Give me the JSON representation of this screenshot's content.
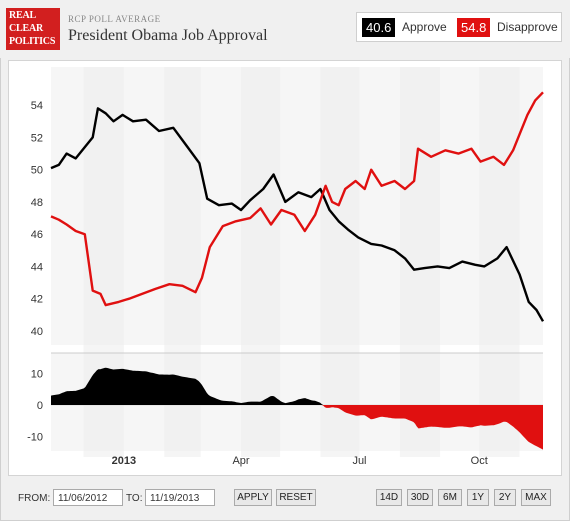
{
  "header": {
    "logo_lines": [
      "REAL",
      "CLEAR",
      "POLITICS"
    ],
    "subtitle": "RCP POLL AVERAGE",
    "title": "President Obama Job Approval"
  },
  "legend": {
    "approve_value": "40.6",
    "approve_label": "Approve",
    "disapprove_value": "54.8",
    "disapprove_label": "Disapprove"
  },
  "colors": {
    "approve": "#000000",
    "disapprove": "#e01010",
    "logo": "#d21f1f"
  },
  "footer": {
    "from_label": "FROM:",
    "from_value": "11/06/2012",
    "to_label": "TO:",
    "to_value": "11/19/2013",
    "apply_label": "APPLY",
    "reset_label": "RESET",
    "ranges": [
      "14D",
      "30D",
      "6M",
      "1Y",
      "2Y",
      "MAX"
    ]
  },
  "chart_data": [
    {
      "type": "line",
      "x_range": [
        "2012-11-06",
        "2013-11-19"
      ],
      "ylim": [
        39.5,
        55.5
      ],
      "yticks": [
        40,
        42,
        44,
        46,
        48,
        50,
        52,
        54
      ],
      "x_tick_labels": [
        "2013",
        "Apr",
        "Jul",
        "Oct"
      ],
      "x_tick_dates": [
        "2013-01-01",
        "2013-04-01",
        "2013-07-01",
        "2013-10-01"
      ],
      "series": [
        {
          "name": "Approve",
          "points": [
            [
              "2012-11-06",
              50.1
            ],
            [
              "2012-11-12",
              50.3
            ],
            [
              "2012-11-18",
              51.0
            ],
            [
              "2012-11-25",
              50.7
            ],
            [
              "2012-12-02",
              51.4
            ],
            [
              "2012-12-08",
              52.0
            ],
            [
              "2012-12-12",
              53.8
            ],
            [
              "2012-12-18",
              53.5
            ],
            [
              "2012-12-24",
              53.0
            ],
            [
              "2012-12-31",
              53.4
            ],
            [
              "2013-01-08",
              53.0
            ],
            [
              "2013-01-18",
              53.1
            ],
            [
              "2013-01-28",
              52.4
            ],
            [
              "2013-02-08",
              52.6
            ],
            [
              "2013-02-18",
              51.5
            ],
            [
              "2013-02-28",
              50.4
            ],
            [
              "2013-03-06",
              48.2
            ],
            [
              "2013-03-15",
              47.8
            ],
            [
              "2013-03-25",
              47.9
            ],
            [
              "2013-04-01",
              47.5
            ],
            [
              "2013-04-08",
              48.1
            ],
            [
              "2013-04-18",
              48.8
            ],
            [
              "2013-04-26",
              49.7
            ],
            [
              "2013-05-05",
              48.0
            ],
            [
              "2013-05-15",
              48.6
            ],
            [
              "2013-05-25",
              48.3
            ],
            [
              "2013-06-01",
              48.8
            ],
            [
              "2013-06-08",
              47.5
            ],
            [
              "2013-06-15",
              46.8
            ],
            [
              "2013-06-22",
              46.3
            ],
            [
              "2013-06-30",
              45.8
            ],
            [
              "2013-07-10",
              45.4
            ],
            [
              "2013-07-18",
              45.3
            ],
            [
              "2013-07-28",
              45.0
            ],
            [
              "2013-08-05",
              44.5
            ],
            [
              "2013-08-12",
              43.8
            ],
            [
              "2013-08-20",
              43.9
            ],
            [
              "2013-08-30",
              44.0
            ],
            [
              "2013-09-08",
              43.9
            ],
            [
              "2013-09-18",
              44.3
            ],
            [
              "2013-09-28",
              44.1
            ],
            [
              "2013-10-05",
              44.0
            ],
            [
              "2013-10-15",
              44.5
            ],
            [
              "2013-10-22",
              45.2
            ],
            [
              "2013-11-01",
              43.5
            ],
            [
              "2013-11-08",
              41.8
            ],
            [
              "2013-11-14",
              41.3
            ],
            [
              "2013-11-19",
              40.6
            ]
          ]
        },
        {
          "name": "Disapprove",
          "points": [
            [
              "2012-11-06",
              47.1
            ],
            [
              "2012-11-12",
              46.9
            ],
            [
              "2012-11-18",
              46.6
            ],
            [
              "2012-11-25",
              46.2
            ],
            [
              "2012-12-02",
              46.0
            ],
            [
              "2012-12-08",
              42.5
            ],
            [
              "2012-12-14",
              42.3
            ],
            [
              "2012-12-18",
              41.6
            ],
            [
              "2012-12-28",
              41.8
            ],
            [
              "2013-01-05",
              42.0
            ],
            [
              "2013-01-15",
              42.3
            ],
            [
              "2013-01-25",
              42.6
            ],
            [
              "2013-02-05",
              42.9
            ],
            [
              "2013-02-15",
              42.8
            ],
            [
              "2013-02-25",
              42.4
            ],
            [
              "2013-03-02",
              43.3
            ],
            [
              "2013-03-08",
              45.2
            ],
            [
              "2013-03-18",
              46.5
            ],
            [
              "2013-03-28",
              46.8
            ],
            [
              "2013-04-08",
              47.0
            ],
            [
              "2013-04-16",
              47.6
            ],
            [
              "2013-04-24",
              46.6
            ],
            [
              "2013-05-02",
              47.5
            ],
            [
              "2013-05-12",
              47.2
            ],
            [
              "2013-05-20",
              46.2
            ],
            [
              "2013-05-28",
              47.2
            ],
            [
              "2013-06-05",
              49.0
            ],
            [
              "2013-06-10",
              48.0
            ],
            [
              "2013-06-15",
              47.8
            ],
            [
              "2013-06-20",
              48.8
            ],
            [
              "2013-06-28",
              49.3
            ],
            [
              "2013-07-05",
              48.8
            ],
            [
              "2013-07-10",
              50.0
            ],
            [
              "2013-07-18",
              49.0
            ],
            [
              "2013-07-28",
              49.3
            ],
            [
              "2013-08-05",
              48.8
            ],
            [
              "2013-08-12",
              49.3
            ],
            [
              "2013-08-15",
              51.3
            ],
            [
              "2013-08-25",
              50.8
            ],
            [
              "2013-09-05",
              51.2
            ],
            [
              "2013-09-15",
              51.0
            ],
            [
              "2013-09-25",
              51.3
            ],
            [
              "2013-10-02",
              50.5
            ],
            [
              "2013-10-12",
              50.8
            ],
            [
              "2013-10-20",
              50.3
            ],
            [
              "2013-10-27",
              51.2
            ],
            [
              "2013-11-01",
              52.2
            ],
            [
              "2013-11-07",
              53.4
            ],
            [
              "2013-11-13",
              54.3
            ],
            [
              "2013-11-19",
              54.8
            ]
          ]
        }
      ]
    },
    {
      "type": "area",
      "ylim": [
        -14,
        14
      ],
      "yticks": [
        -10,
        0,
        10
      ],
      "note": "spread = Approve minus Disapprove, derived from the series above"
    }
  ]
}
